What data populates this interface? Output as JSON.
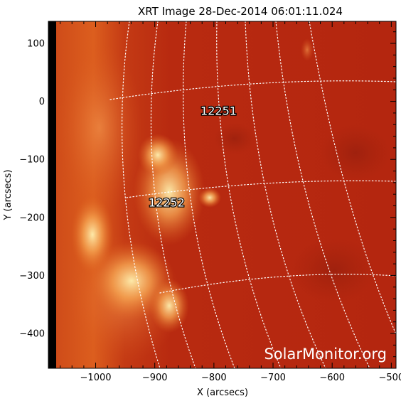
{
  "title": "XRT Image 28-Dec-2014 06:01:11.024",
  "axes": {
    "x_label": "X (arcsecs)",
    "y_label": "Y (arcsecs)",
    "x_range": [
      -1080,
      -492
    ],
    "y_range": [
      -460,
      138
    ],
    "x_ticks": [
      -1000,
      -900,
      -800,
      -700,
      -600,
      -500
    ],
    "y_ticks": [
      100,
      0,
      -100,
      -200,
      -300,
      -400
    ],
    "x_tick_labels": [
      "−1000",
      "−900",
      "−800",
      "−700",
      "−600",
      "−500"
    ],
    "y_tick_labels": [
      "100",
      "0",
      "−100",
      "−200",
      "−300",
      "−400"
    ]
  },
  "active_regions": [
    {
      "label": "12251",
      "x": -792,
      "y": -17
    },
    {
      "label": "12252",
      "x": -880,
      "y": -175
    }
  ],
  "watermark": "SolarMonitor.org",
  "colors": {
    "disk": "#b52610",
    "limb_glow": "#e0661f",
    "bright_core": "#ffe39a",
    "space": "#000000",
    "grid": "#ffffff"
  }
}
